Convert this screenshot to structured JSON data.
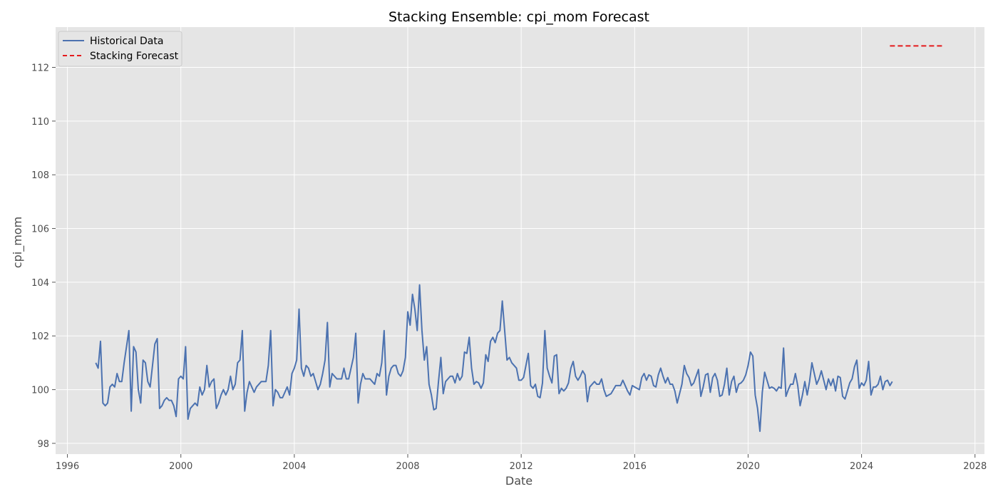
{
  "chart_data": {
    "type": "line",
    "title": "Stacking Ensemble: cpi_mom Forecast",
    "xlabel": "Date",
    "ylabel": "cpi_mom",
    "xlim": [
      "1995-08",
      "2028-05"
    ],
    "ylim": [
      97.6,
      113.5
    ],
    "x_ticks": [
      "1996",
      "2000",
      "2004",
      "2008",
      "2012",
      "2016",
      "2020",
      "2024",
      "2028"
    ],
    "y_ticks": [
      "98",
      "100",
      "102",
      "104",
      "106",
      "108",
      "110",
      "112"
    ],
    "grid": true,
    "legend_position": "top-left",
    "series": [
      {
        "name": "Historical Data",
        "color": "#4c72b0",
        "style": "solid",
        "start": "1997-01",
        "frequency": "monthly",
        "values": [
          101.0,
          100.8,
          101.8,
          99.5,
          99.4,
          99.5,
          100.1,
          100.2,
          100.1,
          100.6,
          100.3,
          100.3,
          101.0,
          101.6,
          102.2,
          99.2,
          101.6,
          101.4,
          100.0,
          99.5,
          101.1,
          101.0,
          100.3,
          100.1,
          100.9,
          101.7,
          101.9,
          99.3,
          99.4,
          99.6,
          99.7,
          99.6,
          99.6,
          99.4,
          99.0,
          100.4,
          100.5,
          100.4,
          101.6,
          98.9,
          99.3,
          99.4,
          99.5,
          99.4,
          100.1,
          99.8,
          100.0,
          100.9,
          100.1,
          100.3,
          100.4,
          99.3,
          99.5,
          99.8,
          100.0,
          99.8,
          100.0,
          100.5,
          100.0,
          100.2,
          101.0,
          101.1,
          102.2,
          99.2,
          99.9,
          100.3,
          100.1,
          99.9,
          100.1,
          100.2,
          100.3,
          100.3,
          100.3,
          100.9,
          102.2,
          99.4,
          100.0,
          99.9,
          99.7,
          99.7,
          99.9,
          100.1,
          99.8,
          100.6,
          100.8,
          101.1,
          103.0,
          100.8,
          100.5,
          100.9,
          100.8,
          100.5,
          100.6,
          100.3,
          100.0,
          100.2,
          100.6,
          101.1,
          102.5,
          100.1,
          100.6,
          100.5,
          100.4,
          100.4,
          100.4,
          100.8,
          100.4,
          100.4,
          100.8,
          101.2,
          102.1,
          99.5,
          100.2,
          100.6,
          100.4,
          100.4,
          100.4,
          100.3,
          100.2,
          100.6,
          100.5,
          101.0,
          102.2,
          99.8,
          100.5,
          100.8,
          100.9,
          100.9,
          100.6,
          100.5,
          100.7,
          101.2,
          102.9,
          102.4,
          103.55,
          103.0,
          102.2,
          103.9,
          102.2,
          101.1,
          101.6,
          100.2,
          99.8,
          99.25,
          99.3,
          100.3,
          101.2,
          99.85,
          100.3,
          100.4,
          100.5,
          100.5,
          100.25,
          100.6,
          100.35,
          100.5,
          101.4,
          101.35,
          101.95,
          100.8,
          100.2,
          100.3,
          100.25,
          100.05,
          100.25,
          101.3,
          101.05,
          101.8,
          101.95,
          101.75,
          102.1,
          102.2,
          103.3,
          102.2,
          101.1,
          101.2,
          101.0,
          100.9,
          100.8,
          100.35,
          100.35,
          100.45,
          100.9,
          101.35,
          100.15,
          100.05,
          100.2,
          99.75,
          99.7,
          100.25,
          102.2,
          100.8,
          100.5,
          100.25,
          101.25,
          101.3,
          99.85,
          100.05,
          99.95,
          100.05,
          100.25,
          100.8,
          101.05,
          100.5,
          100.35,
          100.5,
          100.7,
          100.55,
          99.55,
          100.1,
          100.2,
          100.3,
          100.2,
          100.2,
          100.4,
          100.0,
          99.75,
          99.8,
          99.85,
          100.0,
          100.15,
          100.15,
          100.15,
          100.35,
          100.15,
          99.95,
          99.8,
          100.15,
          100.1,
          100.05,
          100.0,
          100.45,
          100.6,
          100.35,
          100.55,
          100.5,
          100.15,
          100.1,
          100.55,
          100.8,
          100.5,
          100.25,
          100.45,
          100.2,
          100.2,
          99.95,
          99.5,
          99.85,
          100.2,
          100.9,
          100.6,
          100.45,
          100.15,
          100.25,
          100.5,
          100.75,
          99.75,
          100.1,
          100.55,
          100.6,
          99.9,
          100.45,
          100.6,
          100.35,
          99.75,
          99.8,
          100.2,
          100.8,
          99.8,
          100.3,
          100.5,
          99.9,
          100.2,
          100.25,
          100.35,
          100.55,
          100.9,
          101.4,
          101.25,
          99.8,
          99.3,
          98.45,
          99.9,
          100.65,
          100.35,
          100.05,
          100.1,
          100.05,
          99.95,
          100.1,
          100.05,
          101.55,
          99.75,
          100.0,
          100.2,
          100.2,
          100.6,
          100.15,
          99.4,
          99.8,
          100.3,
          99.8,
          100.3,
          101.0,
          100.6,
          100.2,
          100.4,
          100.7,
          100.35,
          100.0,
          100.4,
          100.15,
          100.4,
          99.95,
          100.5,
          100.45,
          99.75,
          99.65,
          99.95,
          100.25,
          100.4,
          100.85,
          101.1,
          100.05,
          100.25,
          100.15,
          100.35,
          101.05,
          99.8,
          100.1,
          100.1,
          100.2,
          100.5,
          100.0,
          100.3,
          100.35,
          100.15,
          100.3
        ]
      },
      {
        "name": "Stacking Forecast",
        "color": "#e41a1c",
        "style": "dashed",
        "x": [
          "2025-01",
          "2026-12"
        ],
        "values": [
          112.8,
          112.8
        ]
      }
    ]
  }
}
